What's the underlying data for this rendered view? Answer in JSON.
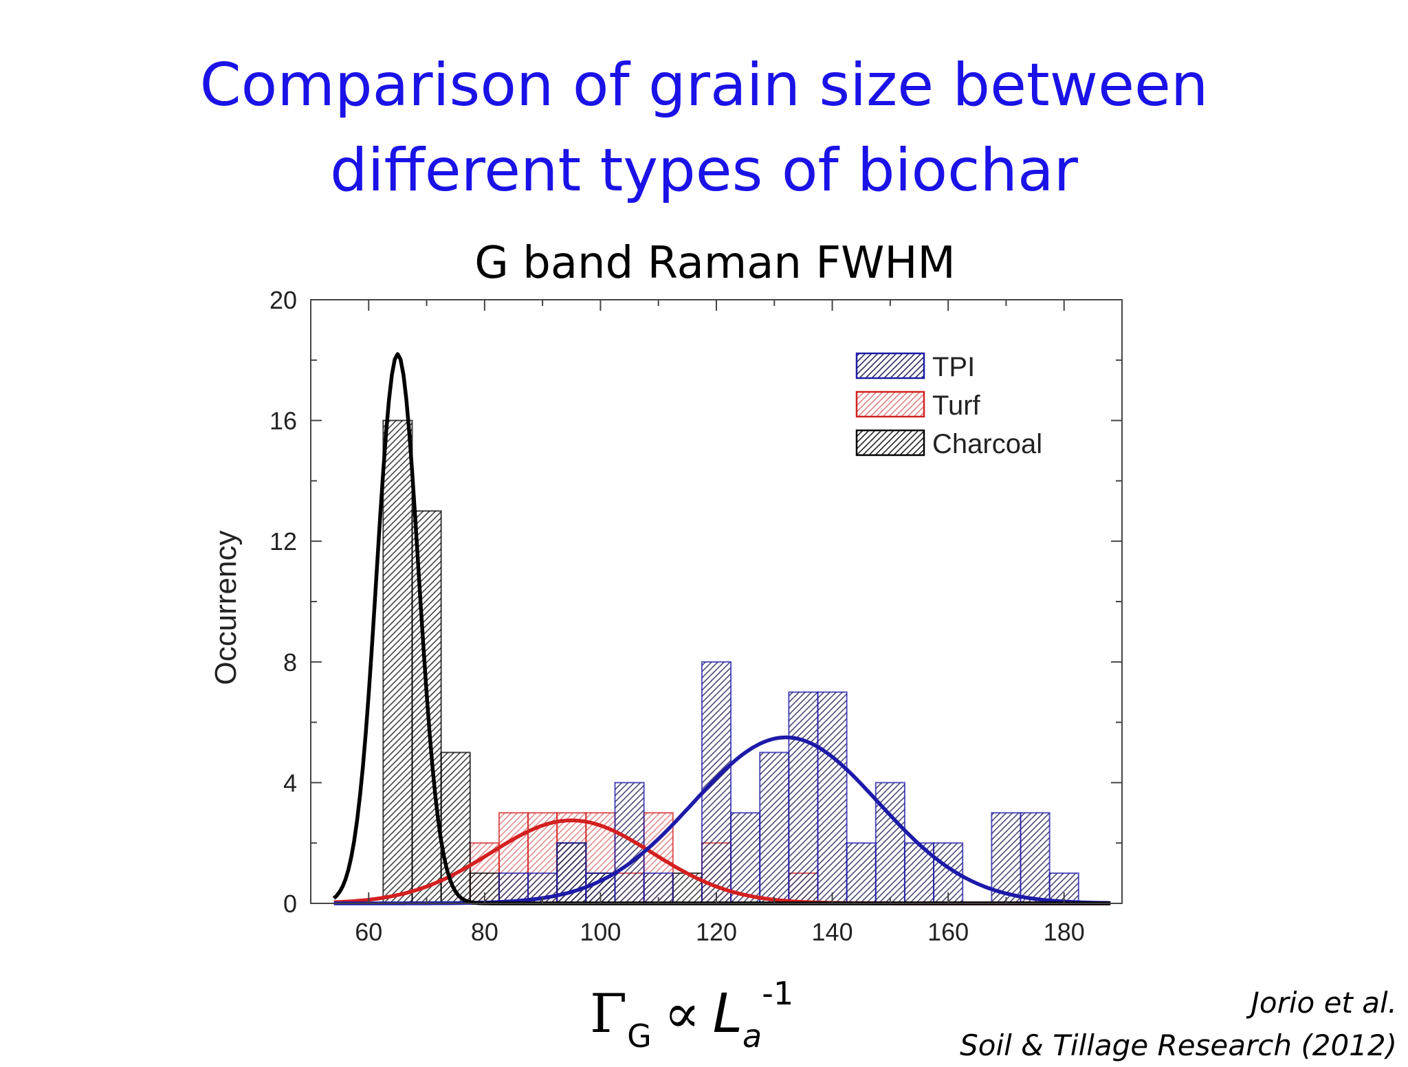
{
  "slide": {
    "title_line1": "Comparison of grain size between",
    "title_line2": "different types of biochar",
    "formula": {
      "gamma": "Γ",
      "gamma_sub": "G",
      "prop": "∝",
      "L": "L",
      "L_sub": "a",
      "sup": "-1"
    },
    "citation_line1": "Jorio et al.",
    "citation_line2": "Soil & Tillage Research (2012)"
  },
  "colors": {
    "title": "#1a12e6",
    "TPI": "#1e1aa8",
    "Turf": "#d42020",
    "Charcoal": "#000000"
  },
  "chart_data": {
    "type": "bar",
    "title": "G band Raman FWHM",
    "xlabel": "",
    "ylabel": "Occurrency",
    "xlim": [
      50,
      190
    ],
    "ylim": [
      0,
      20
    ],
    "xticks": [
      60,
      80,
      100,
      120,
      140,
      160,
      180
    ],
    "yticks": [
      0,
      4,
      8,
      12,
      16,
      20
    ],
    "bin_width": 5,
    "legend_position": "top-right",
    "series": [
      {
        "name": "TPI",
        "bins": [
          {
            "x": 85,
            "y": 1
          },
          {
            "x": 90,
            "y": 1
          },
          {
            "x": 95,
            "y": 2
          },
          {
            "x": 100,
            "y": 1
          },
          {
            "x": 105,
            "y": 4
          },
          {
            "x": 110,
            "y": 1
          },
          {
            "x": 120,
            "y": 8
          },
          {
            "x": 125,
            "y": 3
          },
          {
            "x": 130,
            "y": 5
          },
          {
            "x": 135,
            "y": 7
          },
          {
            "x": 140,
            "y": 7
          },
          {
            "x": 145,
            "y": 2
          },
          {
            "x": 150,
            "y": 4
          },
          {
            "x": 155,
            "y": 2
          },
          {
            "x": 160,
            "y": 2
          },
          {
            "x": 170,
            "y": 3
          },
          {
            "x": 175,
            "y": 3
          },
          {
            "x": 180,
            "y": 1
          }
        ],
        "fit": {
          "mean": 132,
          "sigma": 16,
          "amplitude": 5.5
        }
      },
      {
        "name": "Turf",
        "bins": [
          {
            "x": 80,
            "y": 2
          },
          {
            "x": 85,
            "y": 3
          },
          {
            "x": 90,
            "y": 3
          },
          {
            "x": 95,
            "y": 3
          },
          {
            "x": 100,
            "y": 3
          },
          {
            "x": 105,
            "y": 1
          },
          {
            "x": 110,
            "y": 3
          },
          {
            "x": 120,
            "y": 2
          },
          {
            "x": 135,
            "y": 1
          }
        ],
        "fit": {
          "mean": 95,
          "sigma": 14,
          "amplitude": 2.75
        }
      },
      {
        "name": "Charcoal",
        "bins": [
          {
            "x": 65,
            "y": 16
          },
          {
            "x": 70,
            "y": 13
          },
          {
            "x": 75,
            "y": 5
          },
          {
            "x": 80,
            "y": 1
          },
          {
            "x": 95,
            "y": 2
          },
          {
            "x": 100,
            "y": 1
          },
          {
            "x": 115,
            "y": 1
          }
        ],
        "fit": {
          "mean": 65,
          "sigma": 3.6,
          "amplitude": 18.2
        }
      }
    ]
  }
}
